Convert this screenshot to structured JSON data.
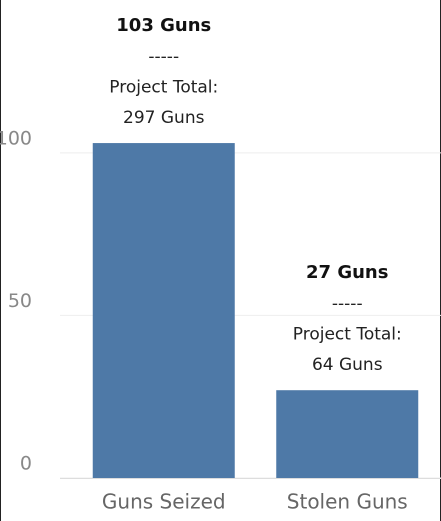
{
  "chart_data": {
    "type": "bar",
    "categories": [
      "Guns Seized",
      "Stolen Guns"
    ],
    "values": [
      103,
      27
    ],
    "value_labels": [
      "103 Guns",
      "27 Guns"
    ],
    "annotations": [
      [
        "-----",
        "Project Total:",
        "297 Guns"
      ],
      [
        "-----",
        "Project Total:",
        "64 Guns"
      ]
    ],
    "color": "#4e79a7",
    "ylim": [
      0,
      147
    ],
    "yticks": [
      0,
      50,
      100
    ],
    "grid": true
  }
}
